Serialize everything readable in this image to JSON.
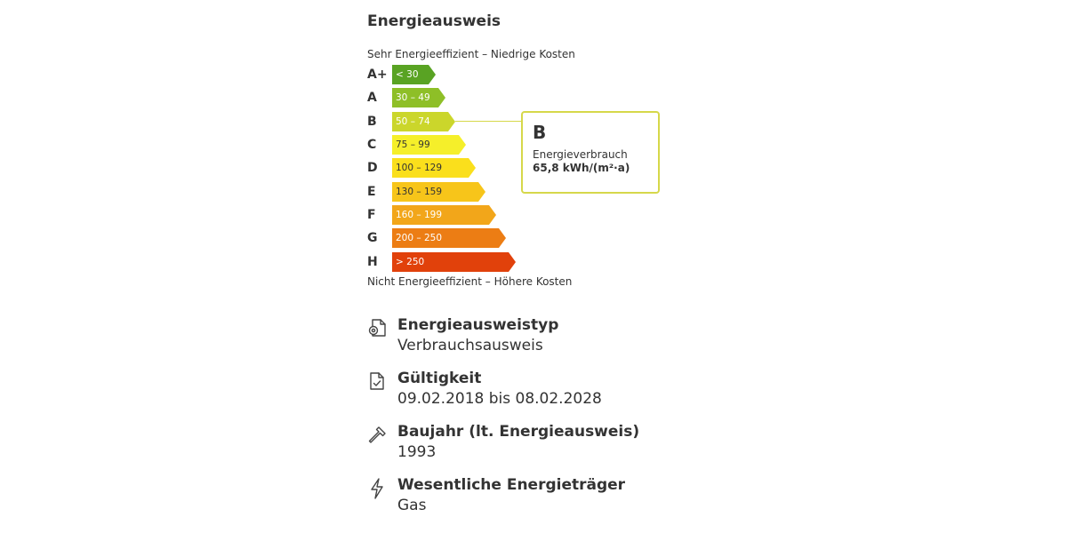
{
  "header": {
    "title": "Energieausweis"
  },
  "scale": {
    "top_caption": "Sehr Energieeffizient – Niedrige Kosten",
    "bottom_caption": "Nicht Energieeffizient – Höhere Kosten",
    "classes": [
      {
        "letter": "A+",
        "range": "< 30",
        "color": "#59a323"
      },
      {
        "letter": "A",
        "range": "30 – 49",
        "color": "#8ebf27"
      },
      {
        "letter": "B",
        "range": "50 – 74",
        "color": "#cbd62b"
      },
      {
        "letter": "C",
        "range": "75 – 99",
        "color": "#f5ef2a"
      },
      {
        "letter": "D",
        "range": "100 – 129",
        "color": "#fadf1c"
      },
      {
        "letter": "E",
        "range": "130 – 159",
        "color": "#f7c51a"
      },
      {
        "letter": "F",
        "range": "160 – 199",
        "color": "#f2a61a"
      },
      {
        "letter": "G",
        "range": "200 – 250",
        "color": "#ec7d14"
      },
      {
        "letter": "H",
        "range": "> 250",
        "color": "#e1410b"
      }
    ]
  },
  "result": {
    "class": "B",
    "label": "Energieverbrauch",
    "value": "65,8 kWh/(m²·a)",
    "accent_color": "#d6d84a"
  },
  "details": [
    {
      "icon": "document-gear-icon",
      "title": "Energieausweistyp",
      "value": "Verbrauchsausweis"
    },
    {
      "icon": "document-check-icon",
      "title": "Gültigkeit",
      "value": "09.02.2018 bis 08.02.2028"
    },
    {
      "icon": "hammer-icon",
      "title": "Baujahr (lt. Energieausweis)",
      "value": "1993"
    },
    {
      "icon": "lightning-icon",
      "title": "Wesentliche Energieträger",
      "value": "Gas"
    }
  ]
}
